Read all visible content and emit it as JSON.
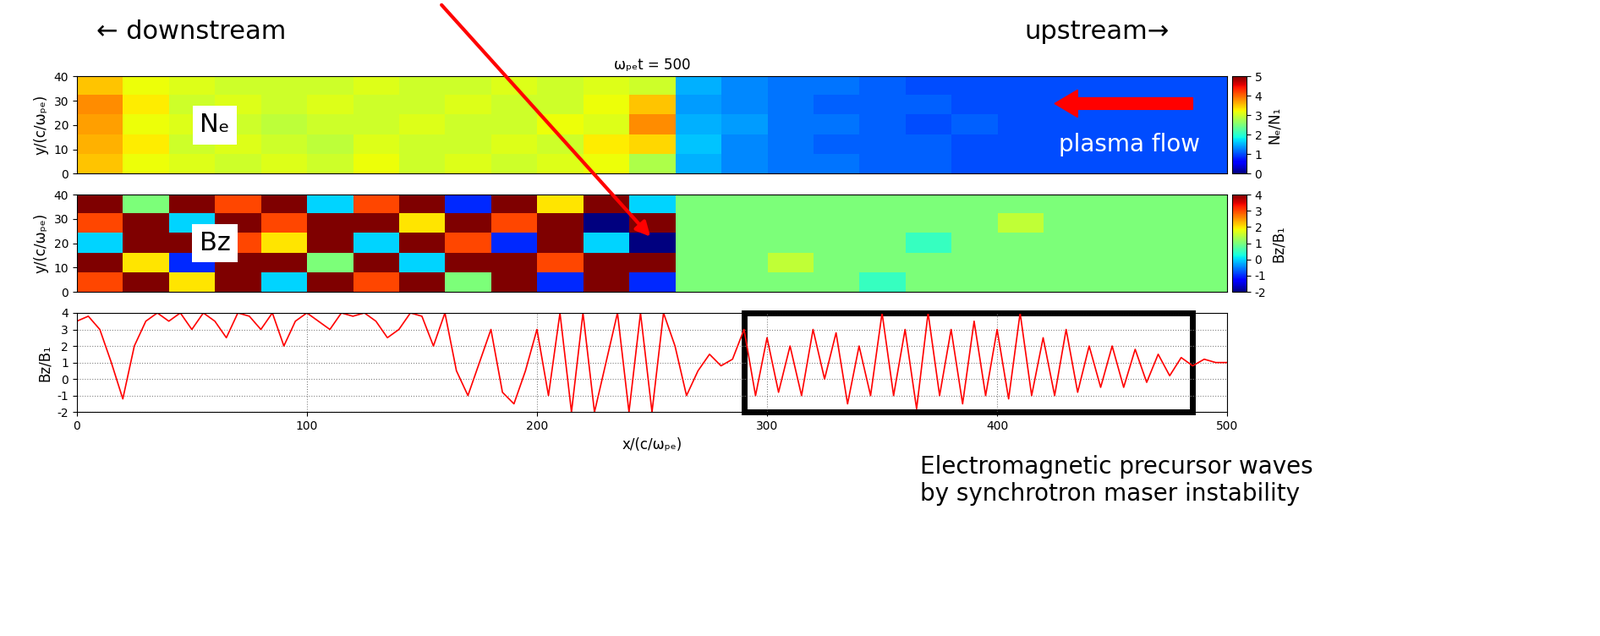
{
  "annotations": {
    "left": "← downstream",
    "right": "upstream→",
    "note": "Electromagnetic precursor waves\nby synchrotron maser instability"
  },
  "chart_data": [
    {
      "type": "heatmap",
      "title": "ωₚₑt = 500",
      "label": "Nₑ",
      "flow_label": "plasma flow",
      "y_label": "y/(c/ωₚₑ)",
      "xlim": [
        0,
        500
      ],
      "ylim": [
        0,
        40
      ],
      "yticks": [
        0,
        10,
        20,
        30,
        40
      ],
      "tick_labels": "y",
      "cells": [
        [
          3.5,
          3.2,
          3.1,
          3.0,
          3.1,
          3.0,
          3.2,
          3.0,
          3.1,
          3.0,
          3.1,
          3.2,
          2.8,
          1.5,
          1.3,
          1.2,
          1.2,
          1.1,
          1.1,
          1.0,
          1.0,
          1.0,
          1.0,
          1.0,
          1.0
        ],
        [
          3.6,
          3.3,
          3.0,
          3.1,
          3.0,
          2.9,
          3.1,
          3.0,
          3.0,
          3.1,
          3.0,
          3.3,
          3.4,
          1.6,
          1.3,
          1.2,
          1.1,
          1.1,
          1.1,
          1.0,
          1.0,
          1.0,
          1.0,
          1.0,
          1.0
        ],
        [
          3.7,
          3.2,
          3.1,
          3.0,
          2.9,
          3.0,
          3.0,
          3.1,
          3.0,
          3.0,
          3.2,
          3.1,
          3.8,
          1.5,
          1.4,
          1.2,
          1.2,
          1.1,
          1.0,
          1.1,
          1.0,
          1.0,
          1.0,
          1.0,
          1.0
        ],
        [
          3.8,
          3.3,
          3.0,
          3.1,
          3.0,
          3.1,
          3.0,
          3.0,
          3.1,
          3.0,
          3.0,
          3.2,
          3.5,
          1.4,
          1.3,
          1.2,
          1.1,
          1.1,
          1.1,
          1.0,
          1.0,
          1.0,
          1.0,
          1.0,
          1.0
        ],
        [
          3.5,
          3.2,
          3.1,
          3.0,
          3.0,
          3.0,
          3.1,
          3.0,
          3.0,
          3.1,
          3.0,
          3.1,
          3.0,
          1.5,
          1.3,
          1.2,
          1.2,
          1.1,
          1.0,
          1.0,
          1.0,
          1.0,
          1.0,
          1.0,
          1.0
        ]
      ],
      "colorbar": {
        "label": "Nₑ/N₁",
        "range": [
          0,
          5
        ],
        "ticks": [
          0,
          1,
          2,
          3,
          4,
          5
        ]
      }
    },
    {
      "type": "heatmap",
      "label": "Bz",
      "y_label": "y/(c/ωₚₑ)",
      "xlim": [
        0,
        500
      ],
      "ylim": [
        0,
        40
      ],
      "yticks": [
        0,
        10,
        20,
        30,
        40
      ],
      "tick_labels": "y",
      "cells": [
        [
          3,
          4,
          2,
          4,
          0,
          4,
          3,
          4,
          1,
          4,
          -1,
          4,
          -1,
          1,
          1,
          1,
          1,
          0.5,
          1,
          1,
          1,
          1,
          1,
          1,
          1
        ],
        [
          4,
          2,
          -1,
          4,
          4,
          1,
          4,
          0,
          4,
          4,
          3,
          4,
          4,
          1,
          1,
          1.5,
          1,
          1,
          1,
          1,
          1,
          1,
          1,
          1,
          1
        ],
        [
          0,
          4,
          4,
          3,
          2,
          4,
          0,
          4,
          3,
          -1,
          4,
          0,
          -2,
          1,
          1,
          1,
          1,
          1,
          0.5,
          1,
          1,
          1,
          1,
          1,
          1
        ],
        [
          3,
          4,
          0,
          4,
          3,
          4,
          4,
          2,
          4,
          3,
          4,
          -2,
          4,
          1,
          1,
          1,
          1,
          1,
          1,
          1,
          1.5,
          1,
          1,
          1,
          1
        ],
        [
          4,
          1,
          4,
          3,
          4,
          0,
          3,
          4,
          -1,
          4,
          2,
          4,
          0,
          1,
          1,
          1,
          1,
          1,
          1,
          1,
          1,
          1,
          1,
          1,
          1
        ]
      ],
      "colorbar": {
        "label": "Bz/B₁",
        "range": [
          -2,
          4
        ],
        "ticks": [
          -2,
          -1,
          0,
          1,
          2,
          3,
          4
        ]
      }
    },
    {
      "type": "line",
      "color": "red",
      "x_label": "x/(c/ωₚₑ)",
      "y_label": "Bz/B₁",
      "xlim": [
        0,
        500
      ],
      "ylim": [
        -2,
        4
      ],
      "xticks": [
        0,
        100,
        200,
        300,
        400,
        500
      ],
      "yticks": [
        -2,
        -1,
        0,
        1,
        2,
        3,
        4
      ],
      "grid": true,
      "highlight_x": [
        290,
        485
      ],
      "x": [
        0,
        5,
        10,
        15,
        20,
        25,
        30,
        35,
        40,
        45,
        50,
        55,
        60,
        65,
        70,
        75,
        80,
        85,
        90,
        95,
        100,
        105,
        110,
        115,
        120,
        125,
        130,
        135,
        140,
        145,
        150,
        155,
        160,
        165,
        170,
        175,
        180,
        185,
        190,
        195,
        200,
        205,
        210,
        215,
        220,
        225,
        230,
        235,
        240,
        245,
        250,
        255,
        260,
        265,
        270,
        275,
        280,
        285,
        290,
        295,
        300,
        305,
        310,
        315,
        320,
        325,
        330,
        335,
        340,
        345,
        350,
        355,
        360,
        365,
        370,
        375,
        380,
        385,
        390,
        395,
        400,
        405,
        410,
        415,
        420,
        425,
        430,
        435,
        440,
        445,
        450,
        455,
        460,
        465,
        470,
        475,
        480,
        485,
        490,
        495,
        500
      ],
      "values": [
        3.5,
        3.8,
        3,
        1,
        -1.2,
        2,
        3.5,
        4,
        3.5,
        4,
        3,
        4,
        3.5,
        2.5,
        4,
        3.8,
        3,
        4,
        2,
        3.5,
        4,
        3.5,
        3,
        4,
        3.8,
        4,
        3.5,
        2.5,
        3,
        4,
        3.8,
        2,
        4,
        0.5,
        -1,
        1,
        3,
        -0.8,
        -1.5,
        0.5,
        3,
        -1,
        4,
        -2,
        4,
        -2,
        1,
        4,
        -2,
        4,
        -2,
        4,
        2,
        -1,
        0.5,
        1.5,
        0.8,
        1.2,
        3,
        -1,
        2.5,
        -0.8,
        2,
        -1,
        3,
        0,
        2.8,
        -1.5,
        2,
        -1,
        4,
        -1,
        3,
        -1.8,
        4,
        -1,
        3,
        -1.5,
        3.5,
        -1,
        3,
        -1.2,
        4,
        -1,
        2.5,
        -1,
        3,
        -0.8,
        2,
        -0.5,
        2,
        -0.5,
        1.8,
        -0.2,
        1.5,
        0.2,
        1.3,
        0.8,
        1.2,
        1,
        1
      ]
    }
  ]
}
